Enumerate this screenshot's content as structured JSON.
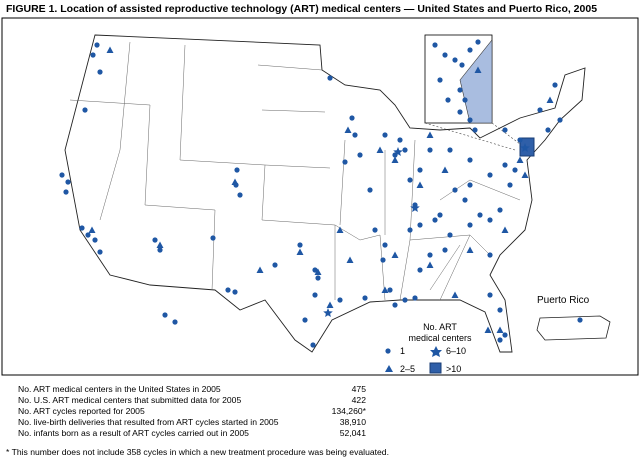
{
  "title": "FIGURE 1. Location of assisted reproductive technology (ART) medical centers — United States and Puerto Rico, 2005",
  "inset_label": "Puerto Rico",
  "legend": {
    "title_lines": [
      "No. ART",
      "medical centers"
    ],
    "items": [
      "1",
      "6–10",
      "2–5",
      ">10"
    ]
  },
  "table": {
    "rows": [
      [
        "No. ART medical centers in the United States in 2005",
        "475"
      ],
      [
        "No. U.S. ART medical centers that submitted data for 2005",
        "422"
      ],
      [
        "No. ART cycles reported for 2005",
        "134,260*"
      ],
      [
        "No. live-birth deliveries that resulted from ART cycles started in 2005",
        "38,910"
      ],
      [
        "No. infants born as a result of ART cycles carried out in 2005",
        "52,041"
      ]
    ]
  },
  "footnote": "* This number does not include 358 cycles in which a new treatment procedure was being evaluated."
}
